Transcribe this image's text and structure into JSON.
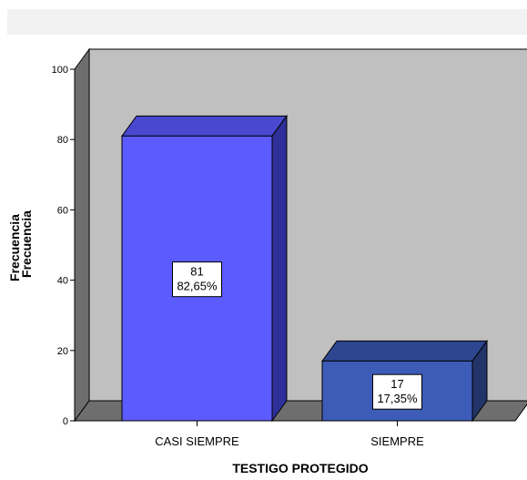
{
  "chart_data": {
    "type": "bar",
    "categories": [
      "CASI SIEMPRE",
      "SIEMPRE"
    ],
    "values": [
      81,
      17
    ],
    "data_labels": [
      {
        "count": "81",
        "percent": "82,65%"
      },
      {
        "count": "17",
        "percent": "17,35%"
      }
    ],
    "xlabel": "TESTIGO PROTEGIDO",
    "ylabel": "Frecuencia",
    "ylabel_ghost": "Frecuencia",
    "ylim": [
      0,
      100
    ],
    "yticks": [
      "0",
      "20",
      "40",
      "60",
      "80",
      "100"
    ],
    "grid": false,
    "three_d": true,
    "colors": {
      "bar_1_front": "#5b5bff",
      "bar_1_top": "#4848d0",
      "bar_1_side": "#2f2f9a",
      "bar_2_front": "#3d5cb8",
      "bar_2_top": "#2e468f",
      "bar_2_side": "#223468",
      "back_wall": "#c0c0c0",
      "left_wall": "#6e6e6e",
      "floor": "#6e6e6e",
      "header_band": "#f2f2f2"
    }
  }
}
